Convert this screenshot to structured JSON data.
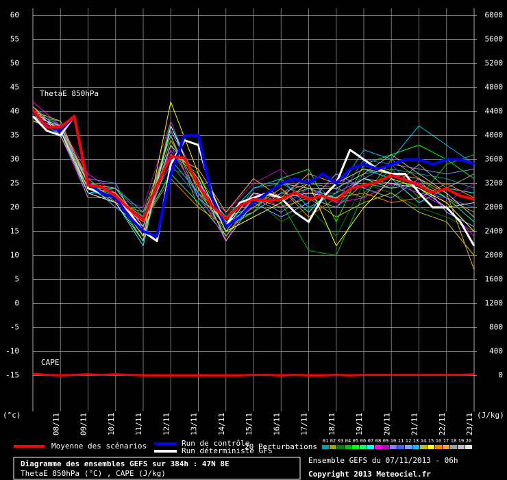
{
  "chart_data": {
    "type": "line",
    "label": "ThetaE 850hPa",
    "cape_label": "CAPE",
    "y_unit": "(°c)",
    "y2_unit": "(J/kg)",
    "xlim": [
      0,
      384
    ],
    "xticks": [
      {
        "value": 24,
        "label": "08/11"
      },
      {
        "value": 48,
        "label": "09/11"
      },
      {
        "value": 72,
        "label": "10/11"
      },
      {
        "value": 96,
        "label": "11/11"
      },
      {
        "value": 120,
        "label": "12/11"
      },
      {
        "value": 144,
        "label": "13/11"
      },
      {
        "value": 168,
        "label": "14/11"
      },
      {
        "value": 192,
        "label": "15/11"
      },
      {
        "value": 216,
        "label": "16/11"
      },
      {
        "value": 240,
        "label": "17/11"
      },
      {
        "value": 264,
        "label": "18/11"
      },
      {
        "value": 288,
        "label": "19/11"
      },
      {
        "value": 312,
        "label": "20/11"
      },
      {
        "value": 336,
        "label": "21/11"
      },
      {
        "value": 360,
        "label": "22/11"
      },
      {
        "value": 384,
        "label": "23/11"
      }
    ],
    "ylim": [
      -22.5,
      61.5
    ],
    "yticks": [
      -15,
      -10,
      -5,
      0,
      5,
      10,
      15,
      20,
      25,
      30,
      35,
      40,
      45,
      50,
      55,
      60
    ],
    "y2lim": [
      -600,
      6120
    ],
    "y2ticks": [
      0,
      400,
      800,
      1200,
      1600,
      2000,
      2400,
      2800,
      3200,
      3600,
      4000,
      4400,
      4800,
      5200,
      5600,
      6000
    ],
    "grid": true,
    "x": [
      0,
      12,
      24,
      36,
      48,
      60,
      72,
      84,
      96,
      108,
      120,
      132,
      144,
      156,
      168,
      180,
      192,
      204,
      216,
      228,
      240,
      252,
      264,
      276,
      288,
      300,
      312,
      324,
      336,
      348,
      360,
      372,
      384
    ],
    "series": [
      {
        "name": "Moyenne des scénarios",
        "color": "#ff0000",
        "values": [
          40.3,
          36.7,
          36.7,
          39,
          24.6,
          24.3,
          22.4,
          19.6,
          17.4,
          24.6,
          30.6,
          30.3,
          24.6,
          20.3,
          17.7,
          20.3,
          21.7,
          21.4,
          21.7,
          23.1,
          21.7,
          22.4,
          21.4,
          23.9,
          24.6,
          25.3,
          26.7,
          25.7,
          24.6,
          23.1,
          23.9,
          22.4,
          21.7
        ]
      },
      {
        "name": "Run de contrôle",
        "color": "#0000ff",
        "values": [
          40,
          37,
          36,
          39,
          25,
          23,
          22,
          18,
          15,
          14,
          27,
          35,
          35,
          22,
          16,
          18,
          21,
          23,
          25,
          26,
          25,
          27,
          25,
          28,
          29,
          28,
          29,
          30,
          30,
          29,
          30,
          30,
          29
        ]
      },
      {
        "name": "Run déterministe GFS",
        "color": "#ffffff",
        "values": [
          39,
          36,
          35,
          39,
          24,
          23,
          22,
          19,
          15,
          13,
          29,
          34,
          33,
          23,
          16,
          21,
          22,
          23,
          22,
          19,
          17,
          22,
          25,
          32,
          30,
          28,
          27,
          27,
          23,
          20,
          20,
          17,
          12
        ]
      }
    ],
    "cape": {
      "axis": "y2",
      "color": "#ff0000",
      "values": [
        30,
        10,
        0,
        10,
        20,
        10,
        20,
        10,
        0,
        0,
        0,
        0,
        0,
        0,
        0,
        0,
        10,
        10,
        0,
        10,
        0,
        0,
        10,
        0,
        10,
        10,
        10,
        10,
        10,
        10,
        10,
        10,
        20
      ]
    },
    "perturbations": {
      "name": "20 Perturbations",
      "x": [
        0,
        24,
        48,
        72,
        96,
        120,
        144,
        168,
        192,
        216,
        240,
        264,
        288,
        312,
        336,
        360,
        384
      ],
      "series": [
        {
          "name": "01",
          "color": "#00a0a0",
          "values": [
            40,
            36,
            25,
            23,
            16,
            33,
            22,
            15,
            24,
            25,
            22,
            20,
            27,
            28,
            27,
            26,
            24
          ]
        },
        {
          "name": "02",
          "color": "#a0a000",
          "values": [
            39,
            35,
            23,
            21,
            19,
            35,
            20,
            16,
            19,
            23,
            25,
            24,
            22,
            30,
            26,
            22,
            19
          ]
        },
        {
          "name": "03",
          "color": "#008000",
          "values": [
            41,
            37,
            26,
            22,
            15,
            28,
            26,
            19,
            22,
            17,
            20,
            14,
            25,
            23,
            20,
            18,
            15
          ]
        },
        {
          "name": "04",
          "color": "#00c000",
          "values": [
            40,
            36,
            24,
            24,
            18,
            31,
            27,
            17,
            23,
            21,
            11,
            10,
            23,
            28,
            22,
            29,
            31
          ]
        },
        {
          "name": "05",
          "color": "#00ff00",
          "values": [
            39,
            38,
            25,
            22,
            13,
            38,
            23,
            16,
            19,
            26,
            28,
            17,
            29,
            31,
            33,
            30,
            26
          ]
        },
        {
          "name": "06",
          "color": "#00ff80",
          "values": [
            40,
            37,
            23,
            23,
            17,
            27,
            21,
            14,
            21,
            22,
            24,
            22,
            26,
            24,
            25,
            22,
            17
          ]
        },
        {
          "name": "07",
          "color": "#00ffff",
          "values": [
            38,
            36,
            24,
            21,
            12,
            37,
            25,
            18,
            20,
            24,
            19,
            25,
            28,
            26,
            21,
            24,
            23
          ]
        },
        {
          "name": "08",
          "color": "#ff00ff",
          "values": [
            42,
            37,
            27,
            23,
            16,
            32,
            23,
            13,
            23,
            20,
            24,
            21,
            22,
            25,
            23,
            20,
            14
          ]
        },
        {
          "name": "09",
          "color": "#c000c0",
          "values": [
            40,
            35,
            22,
            22,
            20,
            38,
            24,
            19,
            25,
            28,
            22,
            26,
            24,
            27,
            25,
            21,
            25
          ]
        },
        {
          "name": "10",
          "color": "#8080ff",
          "values": [
            39,
            36,
            26,
            25,
            14,
            33,
            26,
            15,
            22,
            19,
            23,
            23,
            26,
            29,
            28,
            27,
            28
          ]
        },
        {
          "name": "11",
          "color": "#4060ff",
          "values": [
            40,
            37,
            24,
            22,
            18,
            29,
            22,
            17,
            20,
            23,
            26,
            21,
            30,
            29,
            23,
            22,
            20
          ]
        },
        {
          "name": "12",
          "color": "#80a0ff",
          "values": [
            41,
            36,
            25,
            20,
            16,
            36,
            25,
            16,
            21,
            18,
            21,
            27,
            24,
            22,
            26,
            19,
            16
          ]
        },
        {
          "name": "13",
          "color": "#00c0ff",
          "values": [
            39,
            35,
            23,
            24,
            19,
            30,
            23,
            18,
            24,
            26,
            20,
            23,
            32,
            30,
            37,
            33,
            29
          ]
        },
        {
          "name": "14",
          "color": "#c0c000",
          "values": [
            40,
            38,
            25,
            23,
            17,
            34,
            24,
            14,
            22,
            20,
            22,
            18,
            21,
            23,
            19,
            17,
            10
          ]
        },
        {
          "name": "15",
          "color": "#ffff00",
          "values": [
            40,
            36,
            24,
            22,
            14,
            42,
            27,
            15,
            18,
            21,
            25,
            12,
            20,
            26,
            24,
            21,
            15
          ]
        },
        {
          "name": "16",
          "color": "#ff8000",
          "values": [
            38,
            37,
            26,
            21,
            17,
            26,
            20,
            16,
            20,
            24,
            18,
            22,
            23,
            21,
            22,
            25,
            22
          ]
        },
        {
          "name": "17",
          "color": "#ffa040",
          "values": [
            41,
            35,
            24,
            23,
            15,
            31,
            28,
            19,
            26,
            22,
            27,
            25,
            28,
            27,
            26,
            23,
            7
          ]
        },
        {
          "name": "18",
          "color": "#a0a0a0",
          "values": [
            40,
            36,
            22,
            22,
            18,
            35,
            22,
            17,
            19,
            23,
            22,
            20,
            25,
            24,
            29,
            24,
            27
          ]
        },
        {
          "name": "19",
          "color": "#c0c0c0",
          "values": [
            39,
            37,
            25,
            24,
            16,
            33,
            26,
            13,
            21,
            25,
            24,
            24,
            27,
            31,
            27,
            23,
            18
          ]
        },
        {
          "name": "20",
          "color": "#e0e0e0",
          "values": [
            40,
            36,
            23,
            21,
            13,
            37,
            24,
            16,
            23,
            22,
            23,
            22,
            26,
            25,
            24,
            20,
            21
          ]
        }
      ]
    },
    "footer": {
      "title": "Diagramme des ensembles GEFS sur 384h : 47N 8E",
      "subtitle": "ThetaE 850hPa (°C) , CAPE (J/kg)",
      "run": "Ensemble GEFS du 07/11/2013 - 06h",
      "copyright": "Copyright 2013 Meteociel.fr"
    }
  }
}
